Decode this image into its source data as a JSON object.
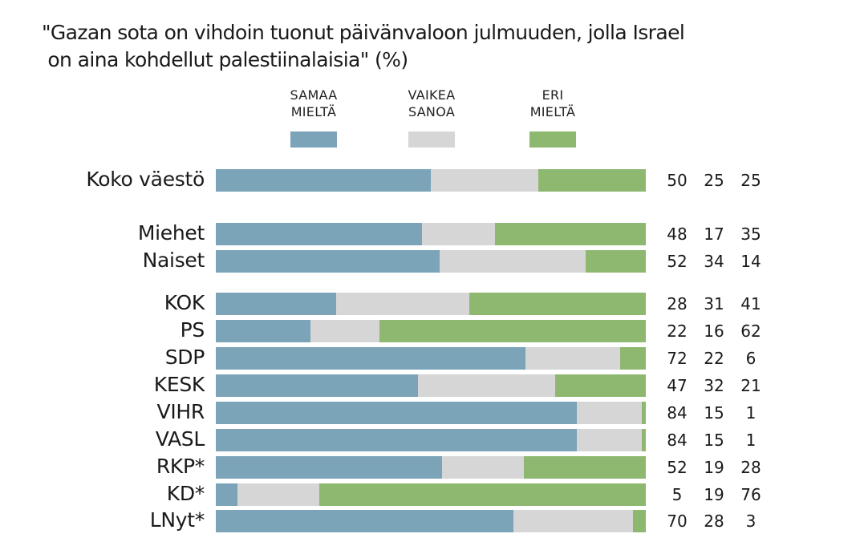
{
  "chart_data": {
    "type": "bar",
    "orientation": "horizontal",
    "stacked": true,
    "title": "\"Gazan sota on vihdoin tuonut päivänvaloon julmuuden, jolla Israel\n on aina kohdellut palestiinalaisia\" (%)",
    "xlim": [
      0,
      100
    ],
    "categories": [
      "Koko väestö",
      "Miehet",
      "Naiset",
      "KOK",
      "PS",
      "SDP",
      "KESK",
      "VIHR",
      "VASL",
      "RKP*",
      "KD*",
      "LNyt*"
    ],
    "groups": [
      0,
      1,
      1,
      2,
      2,
      2,
      2,
      2,
      2,
      2,
      2,
      2
    ],
    "series": [
      {
        "name": "SAMAA\nMIELTÄ",
        "color": "#7ba4b9",
        "values": [
          50,
          48,
          52,
          28,
          22,
          72,
          47,
          84,
          84,
          52,
          5,
          70
        ]
      },
      {
        "name": "VAIKEA\nSANOA",
        "color": "#d6d6d6",
        "values": [
          25,
          17,
          34,
          31,
          16,
          22,
          32,
          15,
          15,
          19,
          19,
          28
        ]
      },
      {
        "name": "ERI\nMIELTÄ",
        "color": "#8eb870",
        "values": [
          25,
          35,
          14,
          41,
          62,
          6,
          21,
          1,
          1,
          28,
          76,
          3
        ]
      }
    ],
    "legend_position": "top",
    "data_labels": "right-columns"
  }
}
